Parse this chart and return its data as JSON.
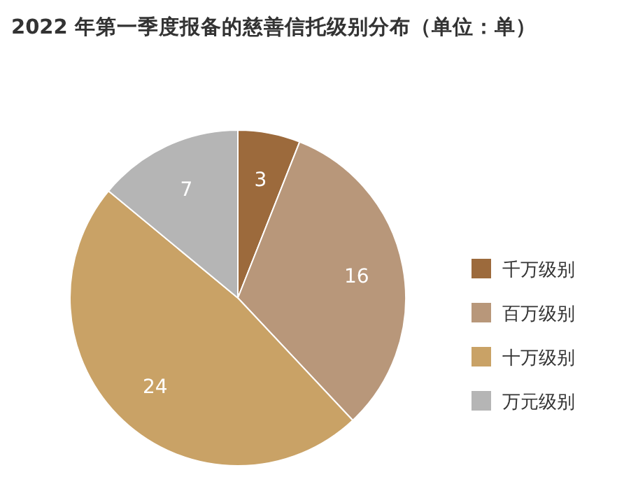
{
  "chart_data": {
    "type": "pie",
    "title": "2022 年第一季度报备的慈善信托级别分布（单位：单）",
    "categories": [
      "千万级别",
      "百万级别",
      "十万级别",
      "万元级别"
    ],
    "values": [
      3,
      16,
      24,
      7
    ],
    "colors": [
      "#9c6a3c",
      "#b8977a",
      "#c9a266",
      "#b5b5b5"
    ],
    "data_labels": true,
    "legend": "right"
  }
}
